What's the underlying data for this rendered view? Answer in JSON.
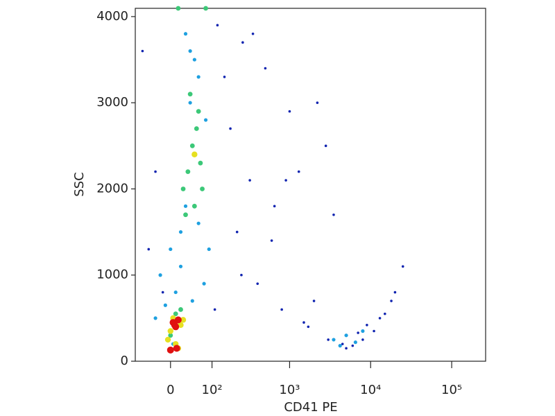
{
  "chart_data": {
    "type": "scatter",
    "x_label": "CD41 PE",
    "y_label": "SSC",
    "xscale": "biexponential",
    "xlim": [
      -80,
      262144
    ],
    "ylim": [
      0,
      4096
    ],
    "xticks": [
      0,
      {
        "value": 100,
        "label": "10²"
      },
      {
        "value": 1000,
        "label": "10³"
      },
      {
        "value": 10000,
        "label": "10⁴"
      },
      {
        "value": 100000,
        "label": "10⁵"
      }
    ],
    "yticks": [
      0,
      1000,
      2000,
      3000,
      4000
    ],
    "series": [
      {
        "color": "#1024b0",
        "x": [
          -60,
          -45,
          -30,
          -15,
          120,
          150,
          180,
          220,
          260,
          320,
          400,
          500,
          650,
          800,
          1000,
          1300,
          1700,
          2200,
          2800,
          3500,
          4500,
          6000,
          8000,
          11000,
          15000,
          20000,
          25000,
          2000,
          1500,
          900,
          600,
          350,
          250,
          3000,
          5000,
          7000,
          9000,
          13000,
          18000,
          110
        ],
        "y": [
          3600,
          1300,
          2200,
          800,
          3900,
          3300,
          2700,
          1500,
          3700,
          2100,
          900,
          3400,
          1800,
          600,
          2900,
          2200,
          400,
          3000,
          2500,
          1700,
          200,
          180,
          250,
          350,
          550,
          800,
          1100,
          700,
          450,
          2100,
          1400,
          3800,
          1000,
          250,
          150,
          330,
          420,
          500,
          700,
          600
        ]
      },
      {
        "color": "#1ea0e0",
        "x": [
          -20,
          -10,
          0,
          5,
          10,
          20,
          30,
          40,
          50,
          60,
          70,
          80,
          90,
          30,
          45,
          60,
          75,
          20,
          40,
          3500,
          5000,
          6500,
          4200,
          8000,
          -30
        ],
        "y": [
          1000,
          650,
          1300,
          200,
          800,
          1100,
          1800,
          3000,
          3500,
          1600,
          2000,
          2800,
          1300,
          3800,
          700,
          3300,
          900,
          1500,
          3600,
          250,
          300,
          220,
          180,
          350,
          500
        ]
      },
      {
        "color": "#3cc878",
        "x": [
          0,
          10,
          20,
          25,
          35,
          45,
          55,
          65,
          70,
          40,
          50,
          30,
          60,
          15,
          80
        ],
        "y": [
          300,
          550,
          600,
          2000,
          2200,
          2500,
          2700,
          2300,
          2000,
          3100,
          1800,
          1700,
          2900,
          4096,
          4096
        ]
      },
      {
        "color": "#e6e020",
        "x": [
          0,
          5,
          15,
          20,
          -5,
          10,
          25,
          50
        ],
        "y": [
          350,
          500,
          150,
          420,
          250,
          200,
          480,
          2400
        ]
      },
      {
        "color": "#e01010",
        "x": [
          5,
          10,
          15,
          0,
          12,
          8
        ],
        "y": [
          450,
          400,
          480,
          130,
          150,
          420
        ]
      }
    ]
  }
}
